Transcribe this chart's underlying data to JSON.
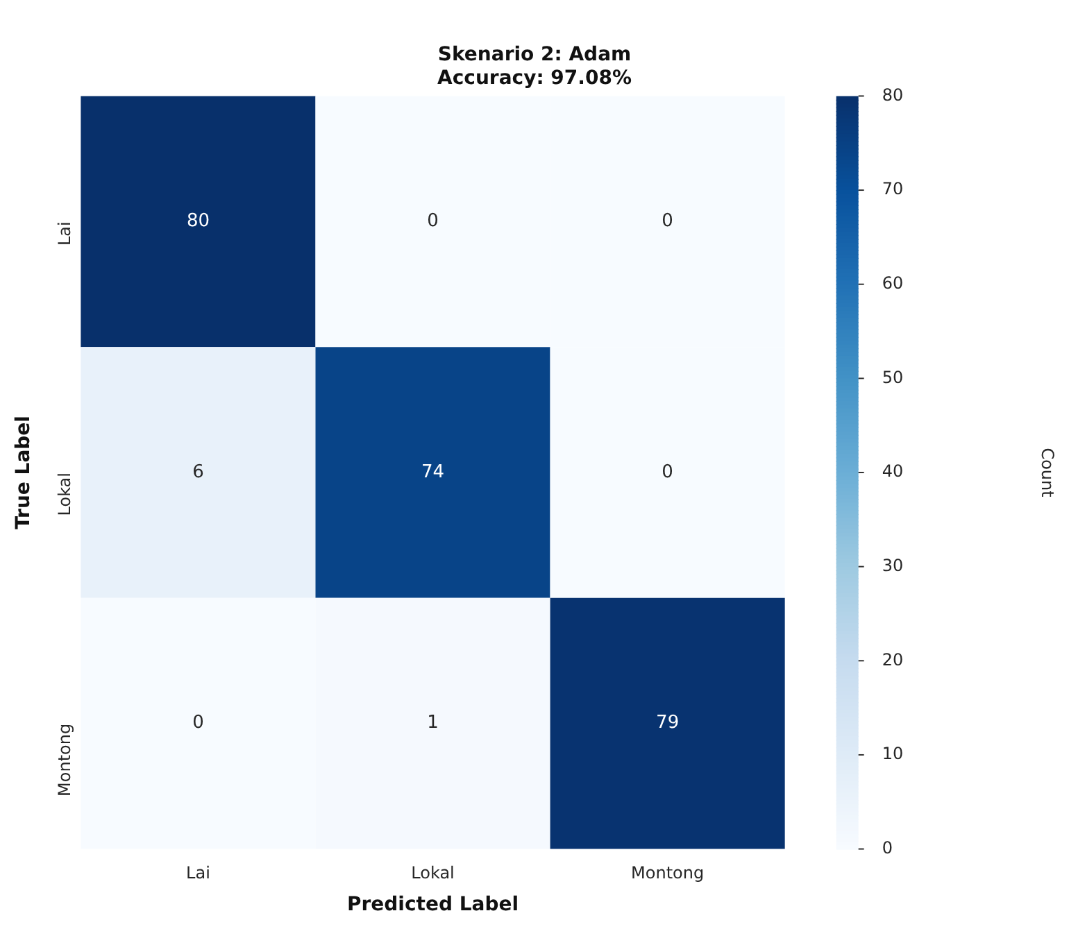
{
  "chart_data": {
    "type": "heatmap",
    "title": "Skenario 2: Adam",
    "subtitle": "Accuracy: 97.08%",
    "xlabel": "Predicted Label",
    "ylabel": "True Label",
    "clabel": "Count",
    "categories": [
      "Lai",
      "Lokal",
      "Montong"
    ],
    "y_categories": [
      "Lai",
      "Lokal",
      "Montong"
    ],
    "cells": [
      [
        80,
        0,
        0
      ],
      [
        6,
        74,
        0
      ],
      [
        0,
        1,
        79
      ]
    ],
    "data_labels": true,
    "clim": [
      0,
      80
    ],
    "cticks": [
      0,
      10,
      20,
      30,
      40,
      50,
      60,
      70,
      80
    ]
  }
}
